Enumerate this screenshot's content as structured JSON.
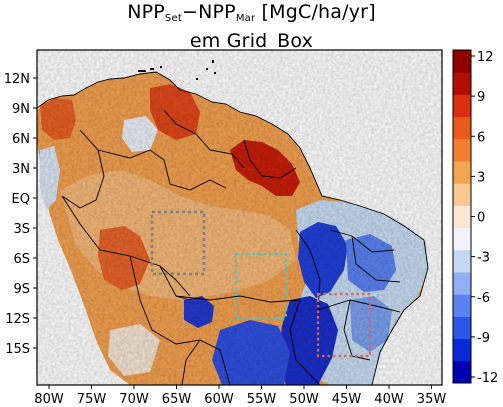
{
  "title": {
    "prefix": "NPP",
    "sub1": "Set",
    "middle": "−NPP",
    "sub2": "Mar",
    "units": " [MgC/ha/yr]",
    "line2": "em Grid_Box"
  },
  "map": {
    "lat_labels": [
      "12N",
      "9N",
      "6N",
      "3N",
      "EQ",
      "3S",
      "6S",
      "9S",
      "12S",
      "15S"
    ],
    "lon_labels": [
      "80W",
      "75W",
      "70W",
      "65W",
      "60W",
      "55W",
      "50W",
      "45W",
      "40W",
      "35W"
    ],
    "boxes": [
      {
        "name": "gray-box",
        "color": "#808080"
      },
      {
        "name": "cyan-box",
        "color": "#40c8c8"
      },
      {
        "name": "red-box",
        "color": "#e06060"
      }
    ]
  },
  "colorbar": {
    "labels": [
      "12",
      "9",
      "6",
      "3",
      "0",
      "-3",
      "-6",
      "-9",
      "-12"
    ],
    "colors": [
      "#0000b0",
      "#0a2ad8",
      "#2d55e8",
      "#5a82f0",
      "#8fb0f2",
      "#c4d8f4",
      "#eef4fa",
      "#fbe6d2",
      "#f8c890",
      "#f4a550",
      "#f08030",
      "#e85a1c",
      "#d83010",
      "#b01000",
      "#900000"
    ]
  }
}
